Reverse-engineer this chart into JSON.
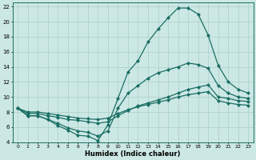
{
  "xlabel": "Humidex (Indice chaleur)",
  "bg_color": "#cce8e4",
  "line_color": "#1a6e64",
  "grid_color": "#aacec8",
  "xlim": [
    -0.5,
    23.5
  ],
  "ylim": [
    4,
    22.5
  ],
  "xticks": [
    0,
    1,
    2,
    3,
    4,
    5,
    6,
    7,
    8,
    9,
    10,
    11,
    12,
    13,
    14,
    15,
    16,
    17,
    18,
    19,
    20,
    21,
    22,
    23
  ],
  "yticks": [
    4,
    6,
    8,
    10,
    12,
    14,
    16,
    18,
    20,
    22
  ],
  "lines": [
    {
      "x": [
        0,
        1,
        2,
        3,
        4,
        5,
        6,
        7,
        8,
        9,
        10,
        11,
        12,
        13,
        14,
        15,
        16,
        17,
        18,
        19,
        20,
        21,
        22,
        23
      ],
      "y": [
        8.5,
        7.5,
        7.5,
        7.0,
        6.2,
        5.6,
        4.9,
        4.8,
        4.2,
        6.3,
        9.8,
        13.3,
        14.8,
        17.3,
        19.0,
        20.5,
        21.8,
        21.8,
        21.0,
        18.2,
        14.2,
        12.0,
        11.0,
        10.5
      ],
      "marker": "D",
      "markersize": 2.0,
      "linewidth": 0.9
    },
    {
      "x": [
        0,
        1,
        2,
        3,
        4,
        5,
        6,
        7,
        8,
        9,
        10,
        11,
        12,
        13,
        14,
        15,
        16,
        17,
        18,
        19,
        20,
        21,
        22,
        23
      ],
      "y": [
        8.5,
        7.5,
        7.5,
        7.0,
        6.5,
        5.9,
        5.5,
        5.3,
        4.8,
        5.5,
        8.5,
        10.5,
        11.5,
        12.5,
        13.2,
        13.6,
        14.0,
        14.5,
        14.3,
        13.8,
        11.5,
        10.5,
        10.0,
        9.8
      ],
      "marker": "D",
      "markersize": 2.0,
      "linewidth": 0.9
    },
    {
      "x": [
        0,
        1,
        2,
        3,
        4,
        5,
        6,
        7,
        8,
        9,
        10,
        11,
        12,
        13,
        14,
        15,
        16,
        17,
        18,
        19,
        20,
        21,
        22,
        23
      ],
      "y": [
        8.5,
        7.8,
        7.8,
        7.5,
        7.3,
        7.0,
        6.9,
        6.7,
        6.5,
        6.7,
        7.5,
        8.2,
        8.8,
        9.2,
        9.6,
        10.0,
        10.5,
        11.0,
        11.3,
        11.6,
        10.0,
        9.8,
        9.5,
        9.4
      ],
      "marker": "D",
      "markersize": 2.0,
      "linewidth": 0.9
    },
    {
      "x": [
        0,
        1,
        2,
        3,
        4,
        5,
        6,
        7,
        8,
        9,
        10,
        11,
        12,
        13,
        14,
        15,
        16,
        17,
        18,
        19,
        20,
        21,
        22,
        23
      ],
      "y": [
        8.5,
        8.0,
        8.0,
        7.8,
        7.6,
        7.4,
        7.2,
        7.1,
        7.0,
        7.2,
        7.8,
        8.3,
        8.7,
        9.0,
        9.3,
        9.6,
        10.0,
        10.3,
        10.5,
        10.7,
        9.5,
        9.2,
        9.0,
        8.9
      ],
      "marker": "D",
      "markersize": 2.0,
      "linewidth": 0.9
    }
  ]
}
